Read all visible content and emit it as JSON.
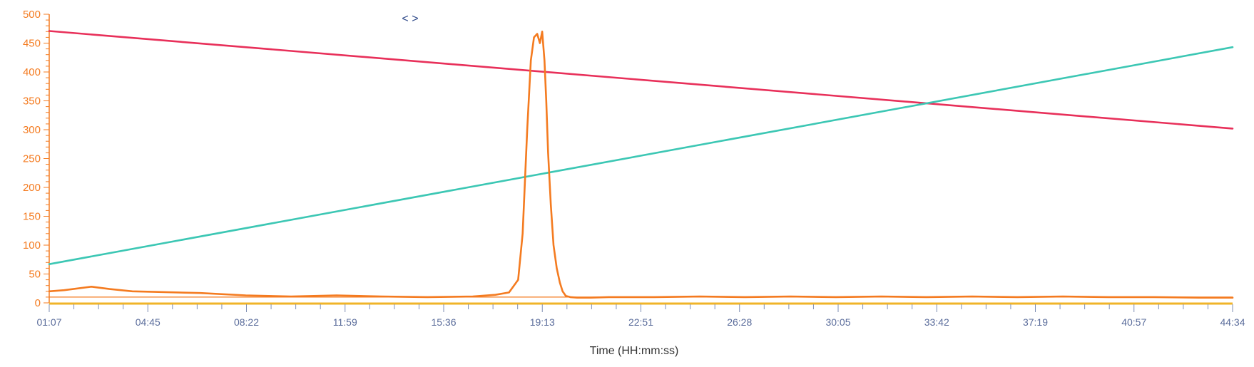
{
  "nav": {
    "label": "< >"
  },
  "colors": {
    "y_axis": "#f47b20",
    "x_axis_text": "#5a6c9b",
    "x_axis_line": "#f0b429",
    "baseline": "#f47b20"
  },
  "chart_data": {
    "type": "line",
    "xlabel": "Time (HH:mm:ss)",
    "ylabel": "",
    "ylim": [
      0,
      500
    ],
    "xlim": [
      67,
      2674
    ],
    "x_unit": "seconds (displayed as mm:ss)",
    "x_tick_labels": [
      "01:07",
      "04:45",
      "08:22",
      "11:59",
      "15:36",
      "19:13",
      "22:51",
      "26:28",
      "30:05",
      "33:42",
      "37:19",
      "40:57",
      "44:34"
    ],
    "y_tick_labels": [
      "0",
      "50",
      "100",
      "150",
      "200",
      "250",
      "300",
      "350",
      "400",
      "450",
      "500"
    ],
    "grid": false,
    "legend": "none",
    "series": [
      {
        "color": "#e8305a",
        "x": [
          67,
          2674
        ],
        "y": [
          471,
          302
        ]
      },
      {
        "color": "#3cc7b4",
        "x": [
          67,
          2674
        ],
        "y": [
          67,
          443
        ]
      },
      {
        "color": "#f47b20",
        "x": [
          67,
          100,
          160,
          200,
          250,
          300,
          400,
          500,
          600,
          700,
          800,
          900,
          1000,
          1050,
          1080,
          1100,
          1110,
          1120,
          1128,
          1135,
          1142,
          1148,
          1153,
          1158,
          1162,
          1166,
          1172,
          1178,
          1185,
          1192,
          1198,
          1205,
          1215,
          1230,
          1260,
          1300,
          1400,
          1500,
          1600,
          1700,
          1800,
          1900,
          2000,
          2100,
          2200,
          2300,
          2400,
          2500,
          2600,
          2674
        ],
        "y": [
          20,
          22,
          28,
          24,
          20,
          19,
          17,
          13,
          11,
          13,
          11,
          10,
          11,
          14,
          18,
          40,
          120,
          300,
          420,
          460,
          466,
          450,
          470,
          420,
          350,
          260,
          170,
          100,
          60,
          35,
          20,
          12,
          10,
          9,
          9,
          10,
          10,
          11,
          10,
          11,
          10,
          11,
          10,
          11,
          10,
          11,
          10,
          10,
          9,
          9
        ]
      },
      {
        "color": "#f47b20",
        "x": [
          67,
          2674
        ],
        "y": [
          10,
          10
        ]
      }
    ]
  }
}
